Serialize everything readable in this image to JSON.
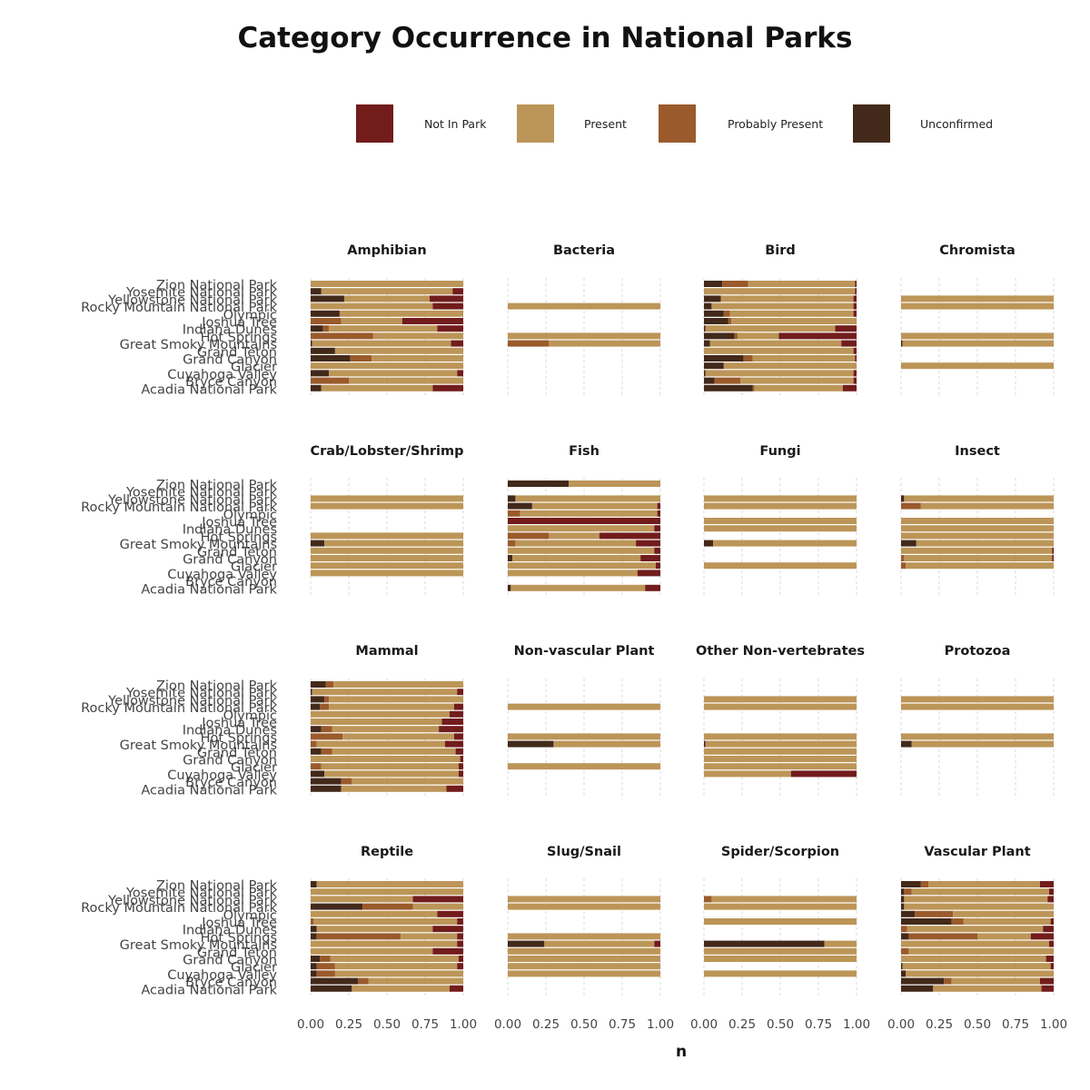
{
  "chart_data": {
    "type": "bar",
    "orientation": "horizontal",
    "stacked": "fill",
    "title": "Category Occurrence in National Parks",
    "xlabel": "n",
    "ylabel": "",
    "xlim": [
      0,
      1
    ],
    "x_ticks": [
      "0.00",
      "0.25",
      "0.50",
      "0.75",
      "1.00"
    ],
    "grid": "vertical dashed",
    "legend_position": "top",
    "parks": [
      "Zion National Park",
      "Yosemite National Park",
      "Yellowstone National Park",
      "Rocky Mountain National Park",
      "Olympic",
      "Joshua Tree",
      "Indiana Dunes",
      "Hot Springs",
      "Great Smoky Mountains",
      "Grand Teton",
      "Grand Canyon",
      "Glacier",
      "Cuyahoga Valley",
      "Bryce Canyon",
      "Acadia National Park"
    ],
    "series": [
      {
        "name": "Not In Park",
        "color": "#721c1c"
      },
      {
        "name": "Present",
        "color": "#bc9558"
      },
      {
        "name": "Probably Present",
        "color": "#9a5a2c"
      },
      {
        "name": "Unconfirmed",
        "color": "#42291a"
      }
    ],
    "stack_order": [
      "Unconfirmed",
      "Probably Present",
      "Present",
      "Not In Park"
    ],
    "value_format": "each row gives [Unconfirmed, Probably Present, Present, Not In Park] as fractions; null = no bar",
    "panels": [
      {
        "title": "Amphibian",
        "rows": [
          [
            0,
            0,
            1.0,
            0
          ],
          [
            0.07,
            0,
            0.86,
            0.07
          ],
          [
            0.22,
            0,
            0.56,
            0.22
          ],
          [
            0,
            0,
            0.8,
            0.2
          ],
          [
            0.19,
            0,
            0.81,
            0
          ],
          [
            0,
            0.2,
            0.4,
            0.4
          ],
          [
            0.08,
            0.04,
            0.71,
            0.17
          ],
          [
            0,
            0.41,
            0.59,
            0
          ],
          [
            0.01,
            0,
            0.91,
            0.08
          ],
          [
            0.16,
            0,
            0.84,
            0
          ],
          [
            0.26,
            0.14,
            0.6,
            0
          ],
          [
            0,
            0,
            1.0,
            0
          ],
          [
            0.12,
            0,
            0.84,
            0.04
          ],
          [
            0,
            0.25,
            0.75,
            0
          ],
          [
            0.07,
            0,
            0.73,
            0.2
          ]
        ]
      },
      {
        "title": "Bacteria",
        "rows": [
          null,
          null,
          null,
          [
            0,
            0,
            1.0,
            0
          ],
          null,
          null,
          null,
          [
            0,
            0,
            1.0,
            0
          ],
          [
            0,
            0.27,
            0.73,
            0
          ],
          null,
          null,
          null,
          null,
          null,
          null
        ]
      },
      {
        "title": "Bird",
        "rows": [
          [
            0.12,
            0.17,
            0.7,
            0.01
          ],
          [
            0,
            0,
            0.99,
            0.01
          ],
          [
            0.11,
            0,
            0.87,
            0.02
          ],
          [
            0.05,
            0,
            0.93,
            0.02
          ],
          [
            0.13,
            0.04,
            0.81,
            0.02
          ],
          [
            0.16,
            0.02,
            0.82,
            0
          ],
          [
            0.01,
            0,
            0.85,
            0.14
          ],
          [
            0.2,
            0.02,
            0.27,
            0.51
          ],
          [
            0.04,
            0,
            0.86,
            0.1
          ],
          [
            0,
            0,
            0.98,
            0.02
          ],
          [
            0.26,
            0.06,
            0.67,
            0.01
          ],
          [
            0.13,
            0,
            0.87,
            0
          ],
          [
            0.01,
            0,
            0.97,
            0.02
          ],
          [
            0.07,
            0.17,
            0.74,
            0.02
          ],
          [
            0.32,
            0.01,
            0.58,
            0.09
          ]
        ]
      },
      {
        "title": "Chromista",
        "rows": [
          null,
          null,
          [
            0,
            0,
            1.0,
            0
          ],
          [
            0,
            0,
            1.0,
            0
          ],
          null,
          null,
          null,
          [
            0,
            0,
            1.0,
            0
          ],
          [
            0.01,
            0,
            0.99,
            0
          ],
          null,
          null,
          [
            0,
            0,
            1.0,
            0
          ],
          null,
          null,
          null
        ]
      },
      {
        "title": "Crab/Lobster/Shrimp",
        "rows": [
          null,
          null,
          [
            0,
            0,
            1.0,
            0
          ],
          [
            0,
            0,
            1.0,
            0
          ],
          null,
          null,
          null,
          [
            0,
            0,
            1.0,
            0
          ],
          [
            0.09,
            0,
            0.91,
            0
          ],
          [
            0,
            0,
            1.0,
            0
          ],
          [
            0,
            0,
            1.0,
            0
          ],
          [
            0,
            0,
            1.0,
            0
          ],
          [
            0,
            0,
            1.0,
            0
          ],
          null,
          null
        ]
      },
      {
        "title": "Fish",
        "rows": [
          [
            0.4,
            0,
            0.6,
            0
          ],
          null,
          [
            0.05,
            0,
            0.95,
            0
          ],
          [
            0.16,
            0,
            0.82,
            0.02
          ],
          [
            0,
            0.08,
            0.9,
            0.02
          ],
          [
            0,
            0,
            0,
            1.0
          ],
          [
            0,
            0,
            0.96,
            0.04
          ],
          [
            0,
            0.27,
            0.33,
            0.4
          ],
          [
            0,
            0.05,
            0.79,
            0.16
          ],
          [
            0,
            0,
            0.96,
            0.04
          ],
          [
            0.03,
            0,
            0.84,
            0.13
          ],
          [
            0,
            0,
            0.97,
            0.03
          ],
          [
            0,
            0,
            0.85,
            0.15
          ],
          null,
          [
            0.02,
            0,
            0.88,
            0.1
          ]
        ]
      },
      {
        "title": "Fungi",
        "rows": [
          null,
          null,
          [
            0,
            0,
            1.0,
            0
          ],
          [
            0,
            0,
            1.0,
            0
          ],
          null,
          [
            0,
            0,
            1.0,
            0
          ],
          [
            0,
            0,
            1.0,
            0
          ],
          null,
          [
            0.06,
            0,
            0.94,
            0
          ],
          null,
          null,
          [
            0,
            0,
            1.0,
            0
          ],
          null,
          null,
          null
        ]
      },
      {
        "title": "Insect",
        "rows": [
          null,
          null,
          [
            0.02,
            0,
            0.98,
            0
          ],
          [
            0,
            0.13,
            0.87,
            0
          ],
          null,
          [
            0,
            0,
            1.0,
            0
          ],
          [
            0,
            0,
            1.0,
            0
          ],
          [
            0,
            0,
            1.0,
            0
          ],
          [
            0.1,
            0,
            0.9,
            0
          ],
          [
            0,
            0,
            0.99,
            0.01
          ],
          [
            0,
            0.02,
            0.97,
            0.01
          ],
          [
            0,
            0.03,
            0.97,
            0
          ],
          null,
          null,
          null
        ]
      },
      {
        "title": "Mammal",
        "rows": [
          [
            0.1,
            0.05,
            0.85,
            0
          ],
          [
            0.01,
            0,
            0.95,
            0.04
          ],
          [
            0.09,
            0.03,
            0.88,
            0
          ],
          [
            0.06,
            0.06,
            0.82,
            0.06
          ],
          [
            0,
            0,
            0.91,
            0.09
          ],
          [
            0,
            0,
            0.86,
            0.14
          ],
          [
            0.07,
            0.07,
            0.7,
            0.16
          ],
          [
            0,
            0.21,
            0.73,
            0.06
          ],
          [
            0,
            0.04,
            0.84,
            0.12
          ],
          [
            0.07,
            0.07,
            0.81,
            0.05
          ],
          [
            0,
            0,
            0.98,
            0.02
          ],
          [
            0,
            0.07,
            0.9,
            0.03
          ],
          [
            0.09,
            0,
            0.88,
            0.03
          ],
          [
            0.2,
            0.07,
            0.73,
            0
          ],
          [
            0.2,
            0,
            0.69,
            0.11
          ]
        ]
      },
      {
        "title": "Non-vascular Plant",
        "rows": [
          null,
          null,
          null,
          [
            0,
            0,
            1.0,
            0
          ],
          null,
          null,
          null,
          [
            0,
            0,
            1.0,
            0
          ],
          [
            0.3,
            0,
            0.7,
            0
          ],
          null,
          null,
          [
            0,
            0,
            1.0,
            0
          ],
          null,
          null,
          null
        ]
      },
      {
        "title": "Other Non-vertebrates",
        "rows": [
          null,
          null,
          [
            0,
            0,
            1.0,
            0
          ],
          [
            0,
            0,
            1.0,
            0
          ],
          null,
          null,
          null,
          [
            0,
            0,
            1.0,
            0
          ],
          [
            0.01,
            0,
            0.99,
            0
          ],
          [
            0,
            0,
            1.0,
            0
          ],
          [
            0,
            0,
            1.0,
            0
          ],
          [
            0,
            0,
            1.0,
            0
          ],
          [
            0,
            0,
            0.57,
            0.43
          ],
          null,
          null
        ]
      },
      {
        "title": "Protozoa",
        "rows": [
          null,
          null,
          [
            0,
            0,
            1.0,
            0
          ],
          [
            0,
            0,
            1.0,
            0
          ],
          null,
          null,
          null,
          [
            0,
            0,
            1.0,
            0
          ],
          [
            0.07,
            0,
            0.93,
            0
          ],
          null,
          null,
          null,
          null,
          null,
          null
        ]
      },
      {
        "title": "Reptile",
        "rows": [
          [
            0.04,
            0,
            0.96,
            0
          ],
          [
            0,
            0,
            1.0,
            0
          ],
          [
            0,
            0,
            0.67,
            0.33
          ],
          [
            0.34,
            0.33,
            0.33,
            0
          ],
          [
            0,
            0,
            0.83,
            0.17
          ],
          [
            0,
            0.02,
            0.94,
            0.04
          ],
          [
            0.04,
            0,
            0.76,
            0.2
          ],
          [
            0.04,
            0.55,
            0.37,
            0.04
          ],
          [
            0,
            0,
            0.96,
            0.04
          ],
          [
            0,
            0,
            0.8,
            0.2
          ],
          [
            0.06,
            0.07,
            0.84,
            0.03
          ],
          [
            0.04,
            0.12,
            0.8,
            0.04
          ],
          [
            0.04,
            0.12,
            0.84,
            0
          ],
          [
            0.31,
            0.07,
            0.62,
            0
          ],
          [
            0.27,
            0,
            0.64,
            0.09
          ]
        ]
      },
      {
        "title": "Slug/Snail",
        "rows": [
          null,
          null,
          [
            0,
            0,
            1.0,
            0
          ],
          [
            0,
            0,
            1.0,
            0
          ],
          null,
          null,
          null,
          [
            0,
            0,
            1.0,
            0
          ],
          [
            0.24,
            0,
            0.72,
            0.04
          ],
          [
            0,
            0,
            1.0,
            0
          ],
          [
            0,
            0,
            1.0,
            0
          ],
          [
            0,
            0,
            1.0,
            0
          ],
          [
            0,
            0,
            1.0,
            0
          ],
          null,
          null
        ]
      },
      {
        "title": "Spider/Scorpion",
        "rows": [
          null,
          null,
          [
            0,
            0.05,
            0.95,
            0
          ],
          [
            0,
            0,
            1.0,
            0
          ],
          null,
          [
            0,
            0,
            1.0,
            0
          ],
          null,
          null,
          [
            0.79,
            0,
            0.21,
            0
          ],
          [
            0,
            0,
            1.0,
            0
          ],
          [
            0,
            0,
            1.0,
            0
          ],
          null,
          [
            0,
            0,
            1.0,
            0
          ],
          null,
          null
        ]
      },
      {
        "title": "Vascular Plant",
        "rows": [
          [
            0.13,
            0.05,
            0.73,
            0.09
          ],
          [
            0.02,
            0.05,
            0.9,
            0.03
          ],
          [
            0.02,
            0,
            0.94,
            0.04
          ],
          [
            0.02,
            0,
            0.98,
            0
          ],
          [
            0.09,
            0.25,
            0.66,
            0
          ],
          [
            0.33,
            0.08,
            0.57,
            0.02
          ],
          [
            0,
            0.04,
            0.89,
            0.07
          ],
          [
            0.05,
            0.45,
            0.35,
            0.15
          ],
          [
            0,
            0,
            0.97,
            0.03
          ],
          [
            0,
            0.05,
            0.95,
            0
          ],
          [
            0,
            0,
            0.95,
            0.05
          ],
          [
            0.01,
            0,
            0.97,
            0.02
          ],
          [
            0.03,
            0,
            0.97,
            0
          ],
          [
            0.28,
            0.05,
            0.58,
            0.09
          ],
          [
            0.21,
            0,
            0.71,
            0.08
          ]
        ]
      }
    ]
  }
}
